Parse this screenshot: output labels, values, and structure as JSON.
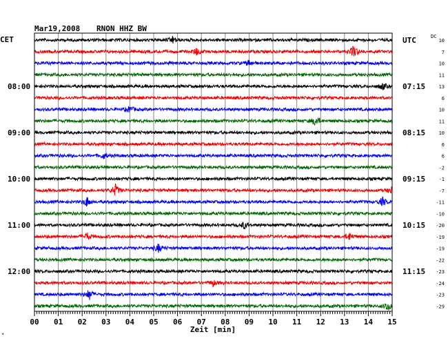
{
  "chart_data": {
    "type": "line",
    "title": "Mar19,2008",
    "station": "RNON HHZ BW",
    "left_timezone": "CET",
    "right_timezone": "UTC",
    "dc_header": "DC",
    "xlabel": "Zeit [min]",
    "xlim": [
      0,
      15
    ],
    "x_ticks": [
      "00",
      "01",
      "02",
      "03",
      "04",
      "05",
      "06",
      "07",
      "08",
      "09",
      "10",
      "11",
      "12",
      "13",
      "14",
      "15"
    ],
    "trace_colors": [
      "#000000",
      "#ee0000",
      "#0000ee",
      "#006600"
    ],
    "left_hour_labels": [
      {
        "trace": 4,
        "label": "08:00"
      },
      {
        "trace": 8,
        "label": "09:00"
      },
      {
        "trace": 12,
        "label": "10:00"
      },
      {
        "trace": 16,
        "label": "11:00"
      },
      {
        "trace": 20,
        "label": "12:00"
      }
    ],
    "right_hour_labels": [
      {
        "trace": 0,
        "label": "UTC"
      },
      {
        "trace": 4,
        "label": "07:15"
      },
      {
        "trace": 8,
        "label": "08:15"
      },
      {
        "trace": 12,
        "label": "09:15"
      },
      {
        "trace": 16,
        "label": "10:15"
      },
      {
        "trace": 20,
        "label": "11:15"
      }
    ],
    "dc_offsets": [
      10,
      7,
      10,
      11,
      13,
      6,
      10,
      11,
      10,
      6,
      6,
      -2,
      -1,
      -7,
      -11,
      -10,
      -20,
      -19,
      -19,
      -22,
      -23,
      -24,
      -23,
      -29
    ],
    "events": [
      {
        "trace": 0,
        "minute": 5.8,
        "amp": 1.6
      },
      {
        "trace": 1,
        "minute": 6.8,
        "amp": 1.8
      },
      {
        "trace": 1,
        "minute": 13.4,
        "amp": 3.2
      },
      {
        "trace": 2,
        "minute": 9.0,
        "amp": 1.3
      },
      {
        "trace": 4,
        "minute": 14.6,
        "amp": 1.6
      },
      {
        "trace": 6,
        "minute": 4.0,
        "amp": 1.5
      },
      {
        "trace": 7,
        "minute": 11.8,
        "amp": 2.6
      },
      {
        "trace": 10,
        "minute": 2.9,
        "amp": 1.3
      },
      {
        "trace": 13,
        "minute": 3.4,
        "amp": 2.8
      },
      {
        "trace": 13,
        "minute": 15.0,
        "amp": 2.2
      },
      {
        "trace": 14,
        "minute": 2.2,
        "amp": 2.4
      },
      {
        "trace": 14,
        "minute": 14.6,
        "amp": 2.0
      },
      {
        "trace": 16,
        "minute": 8.8,
        "amp": 1.6
      },
      {
        "trace": 17,
        "minute": 2.2,
        "amp": 1.8
      },
      {
        "trace": 17,
        "minute": 13.2,
        "amp": 1.8
      },
      {
        "trace": 18,
        "minute": 5.2,
        "amp": 2.0
      },
      {
        "trace": 21,
        "minute": 7.5,
        "amp": 1.4
      },
      {
        "trace": 22,
        "minute": 2.3,
        "amp": 2.6
      },
      {
        "trace": 23,
        "minute": 14.8,
        "amp": 2.2
      }
    ]
  }
}
